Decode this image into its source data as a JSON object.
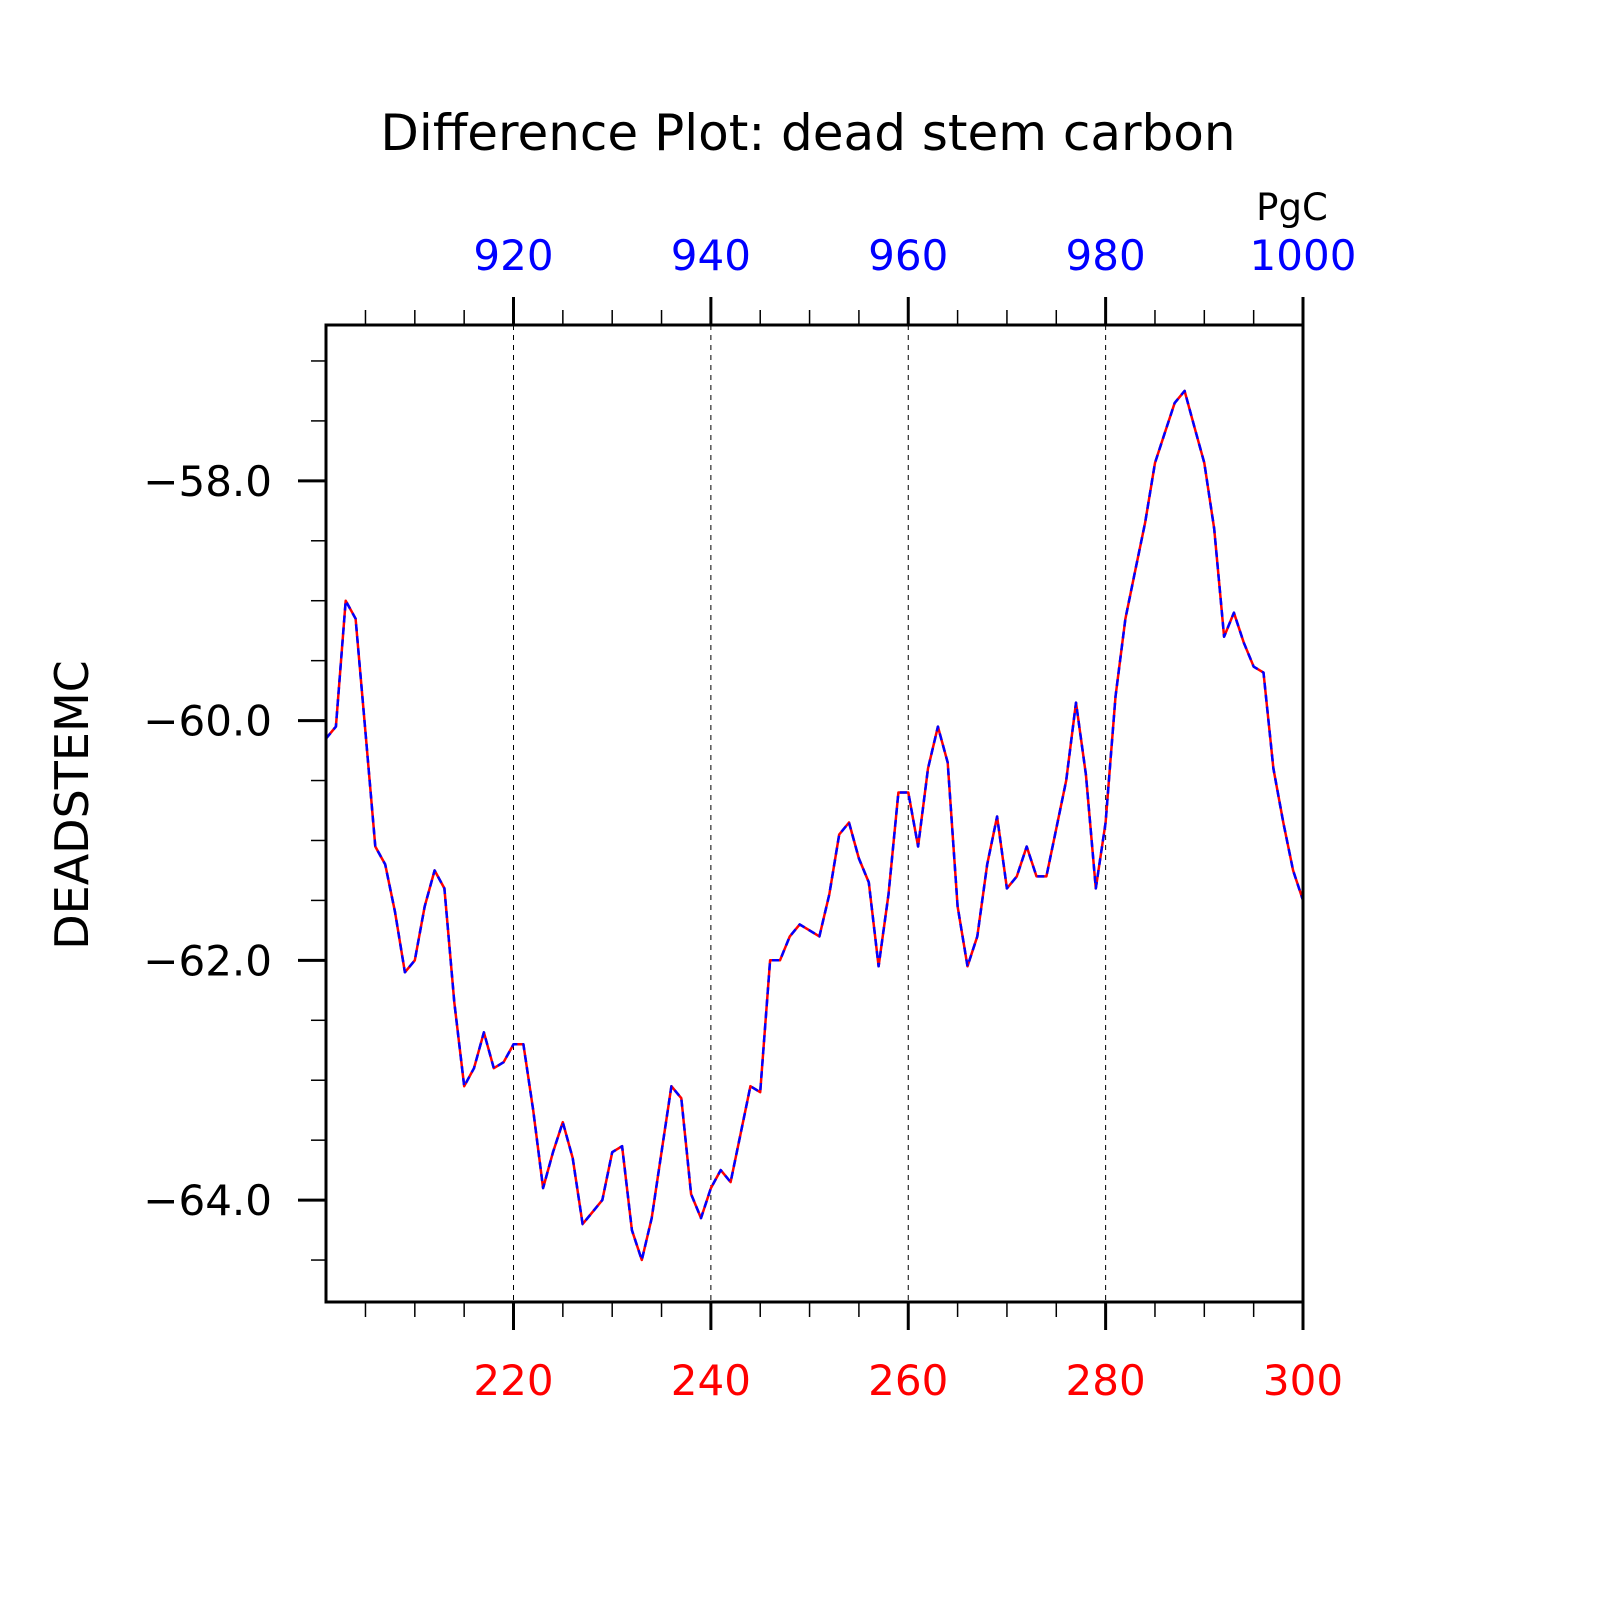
{
  "chart_data": {
    "type": "line",
    "title": "Difference Plot: dead stem carbon",
    "units_label": "PgC",
    "ylabel": "DEADSTEMC",
    "xlabel": "",
    "xlim": [
      201,
      300
    ],
    "ylim": [
      -64.85,
      -56.7
    ],
    "top_xlim": [
      901,
      1000
    ],
    "bottom_ticks": [
      220,
      240,
      260,
      280,
      300
    ],
    "top_ticks": [
      920,
      940,
      960,
      980,
      1000
    ],
    "y_ticks": [
      -58.0,
      -60.0,
      -62.0,
      -64.0
    ],
    "y_tick_labels": [
      "−58.0",
      "−60.0",
      "−62.0",
      "−64.0"
    ],
    "colors": {
      "bottom_axis": "#ff0000",
      "top_axis": "#0000ff",
      "series_a": "#ff0000",
      "series_b": "#0000ff"
    },
    "x": [
      201,
      202,
      203,
      204,
      205,
      206,
      207,
      208,
      209,
      210,
      211,
      212,
      213,
      214,
      215,
      216,
      217,
      218,
      219,
      220,
      221,
      222,
      223,
      224,
      225,
      226,
      227,
      228,
      229,
      230,
      231,
      232,
      233,
      234,
      235,
      236,
      237,
      238,
      239,
      240,
      241,
      242,
      243,
      244,
      245,
      246,
      247,
      248,
      249,
      250,
      251,
      252,
      253,
      254,
      255,
      256,
      257,
      258,
      259,
      260,
      261,
      262,
      263,
      264,
      265,
      266,
      267,
      268,
      269,
      270,
      271,
      272,
      273,
      274,
      275,
      276,
      277,
      278,
      279,
      280,
      281,
      282,
      283,
      284,
      285,
      286,
      287,
      288,
      289,
      290,
      291,
      292,
      293,
      294,
      295,
      296,
      297,
      298,
      299,
      300
    ],
    "series": [
      {
        "values": [
          -60.15,
          -60.05,
          -59.0,
          -59.15,
          -60.1,
          -61.05,
          -61.2,
          -61.6,
          -62.1,
          -62.0,
          -61.55,
          -61.25,
          -61.4,
          -62.35,
          -63.05,
          -62.9,
          -62.6,
          -62.9,
          -62.85,
          -62.7,
          -62.7,
          -63.25,
          -63.9,
          -63.6,
          -63.35,
          -63.65,
          -64.2,
          -64.1,
          -64.0,
          -63.6,
          -63.55,
          -64.25,
          -64.5,
          -64.15,
          -63.6,
          -63.05,
          -63.15,
          -63.95,
          -64.15,
          -63.9,
          -63.75,
          -63.85,
          -63.45,
          -63.05,
          -63.1,
          -62.0,
          -62.0,
          -61.8,
          -61.7,
          -61.75,
          -61.8,
          -61.45,
          -60.95,
          -60.85,
          -61.15,
          -61.35,
          -62.05,
          -61.45,
          -60.6,
          -60.6,
          -61.05,
          -60.4,
          -60.05,
          -60.35,
          -61.55,
          -62.05,
          -61.8,
          -61.2,
          -60.8,
          -61.4,
          -61.3,
          -61.05,
          -61.3,
          -61.3,
          -60.9,
          -60.5,
          -59.85,
          -60.45,
          -61.4,
          -60.85,
          -59.8,
          -59.15,
          -58.75,
          -58.35,
          -57.85,
          -57.6,
          -57.35,
          -57.25,
          -57.55,
          -57.85,
          -58.4,
          -59.3,
          -59.1,
          -59.35,
          -59.55,
          -59.6,
          -60.4,
          -60.85,
          -61.25,
          -61.5
        ]
      }
    ]
  }
}
